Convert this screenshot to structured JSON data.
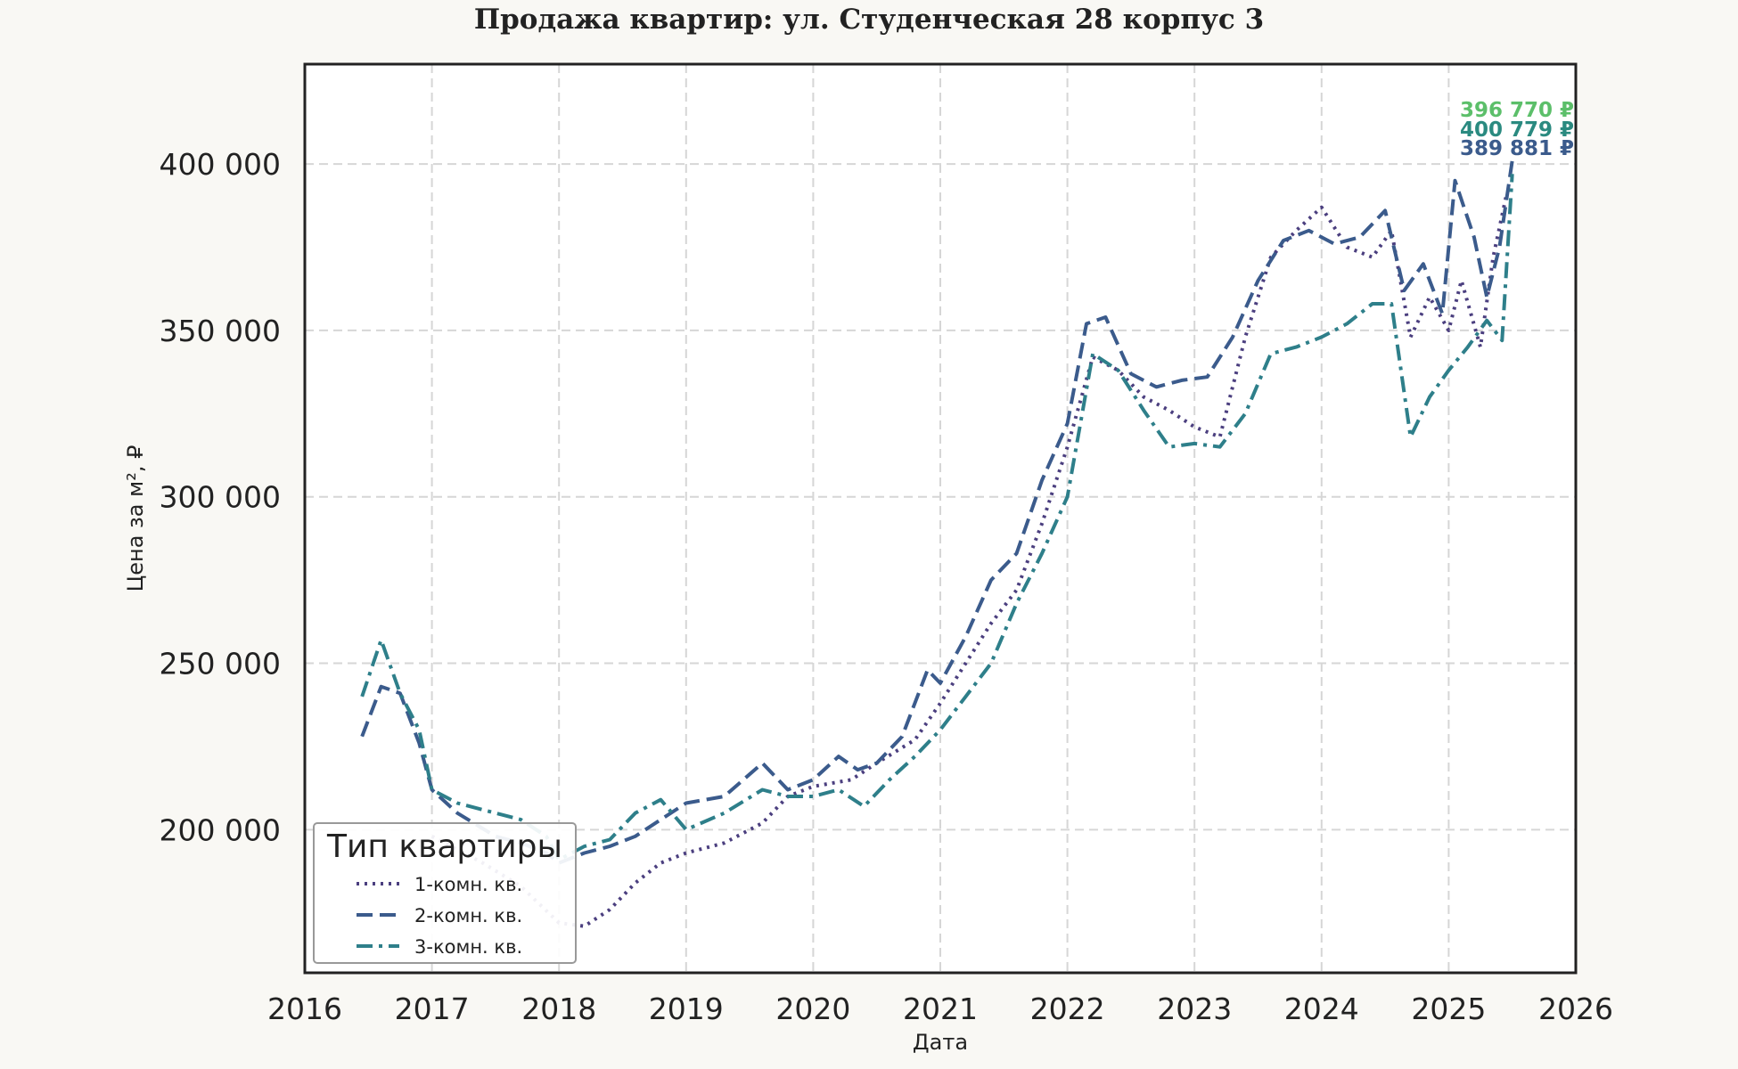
{
  "chart_data": {
    "type": "line",
    "title": "Продажа квартир: ул. Студенческая 28 корпус 3",
    "xlabel": "Дата",
    "ylabel": "Цена за м², ₽",
    "xlim": [
      2016,
      2026
    ],
    "ylim": [
      157000,
      430000
    ],
    "x_ticks": [
      "2016",
      "2017",
      "2018",
      "2019",
      "2020",
      "2021",
      "2022",
      "2023",
      "2024",
      "2025",
      "2026"
    ],
    "y_ticks": [
      {
        "value": 200000,
        "label": "200 000"
      },
      {
        "value": 250000,
        "label": "250 000"
      },
      {
        "value": 300000,
        "label": "300 000"
      },
      {
        "value": 350000,
        "label": "350 000"
      },
      {
        "value": 400000,
        "label": "400 000"
      }
    ],
    "grid": true,
    "legend": {
      "title": "Тип квартиры",
      "position": "bottom-left"
    },
    "series": [
      {
        "name": "1-комн. кв.",
        "color": "#4b3f7f",
        "dash": "dotted",
        "end_label": "389 881 ₽",
        "points": [
          [
            2017.0,
            198000
          ],
          [
            2017.4,
            190000
          ],
          [
            2017.7,
            183000
          ],
          [
            2018.0,
            172000
          ],
          [
            2018.2,
            171000
          ],
          [
            2018.4,
            176000
          ],
          [
            2018.6,
            184000
          ],
          [
            2018.8,
            190000
          ],
          [
            2019.0,
            193000
          ],
          [
            2019.3,
            196000
          ],
          [
            2019.6,
            202000
          ],
          [
            2019.8,
            210000
          ],
          [
            2020.0,
            213000
          ],
          [
            2020.3,
            215000
          ],
          [
            2020.5,
            220000
          ],
          [
            2020.8,
            227000
          ],
          [
            2021.0,
            238000
          ],
          [
            2021.2,
            250000
          ],
          [
            2021.4,
            262000
          ],
          [
            2021.6,
            272000
          ],
          [
            2021.8,
            292000
          ],
          [
            2022.0,
            315000
          ],
          [
            2022.2,
            342000
          ],
          [
            2022.4,
            338000
          ],
          [
            2022.6,
            330000
          ],
          [
            2022.8,
            326000
          ],
          [
            2023.0,
            321000
          ],
          [
            2023.2,
            318000
          ],
          [
            2023.4,
            348000
          ],
          [
            2023.6,
            372000
          ],
          [
            2023.8,
            380000
          ],
          [
            2024.0,
            387000
          ],
          [
            2024.2,
            375000
          ],
          [
            2024.4,
            372000
          ],
          [
            2024.55,
            380000
          ],
          [
            2024.7,
            348000
          ],
          [
            2024.85,
            360000
          ],
          [
            2025.0,
            350000
          ],
          [
            2025.1,
            365000
          ],
          [
            2025.25,
            345000
          ],
          [
            2025.35,
            372000
          ],
          [
            2025.45,
            390000
          ]
        ]
      },
      {
        "name": "2-комн. кв.",
        "color": "#3b5b8c",
        "dash": "dashed",
        "end_label": "400 779 ₽",
        "points": [
          [
            2016.45,
            228000
          ],
          [
            2016.6,
            243000
          ],
          [
            2016.75,
            241000
          ],
          [
            2016.9,
            226000
          ],
          [
            2017.0,
            212000
          ],
          [
            2017.2,
            205000
          ],
          [
            2017.5,
            198000
          ],
          [
            2017.7,
            196000
          ],
          [
            2017.9,
            193000
          ],
          [
            2018.0,
            190000
          ],
          [
            2018.2,
            193000
          ],
          [
            2018.4,
            195000
          ],
          [
            2018.6,
            198000
          ],
          [
            2018.8,
            203000
          ],
          [
            2019.0,
            208000
          ],
          [
            2019.3,
            210000
          ],
          [
            2019.6,
            220000
          ],
          [
            2019.8,
            212000
          ],
          [
            2020.0,
            215000
          ],
          [
            2020.2,
            222000
          ],
          [
            2020.35,
            218000
          ],
          [
            2020.5,
            220000
          ],
          [
            2020.7,
            228000
          ],
          [
            2020.9,
            248000
          ],
          [
            2021.0,
            244000
          ],
          [
            2021.2,
            258000
          ],
          [
            2021.4,
            275000
          ],
          [
            2021.6,
            283000
          ],
          [
            2021.8,
            305000
          ],
          [
            2022.0,
            322000
          ],
          [
            2022.15,
            352000
          ],
          [
            2022.3,
            354000
          ],
          [
            2022.5,
            337000
          ],
          [
            2022.7,
            333000
          ],
          [
            2022.9,
            335000
          ],
          [
            2023.1,
            336000
          ],
          [
            2023.3,
            348000
          ],
          [
            2023.5,
            365000
          ],
          [
            2023.7,
            377000
          ],
          [
            2023.9,
            380000
          ],
          [
            2024.1,
            376000
          ],
          [
            2024.3,
            378000
          ],
          [
            2024.5,
            386000
          ],
          [
            2024.65,
            362000
          ],
          [
            2024.8,
            370000
          ],
          [
            2024.95,
            355000
          ],
          [
            2025.05,
            395000
          ],
          [
            2025.2,
            378000
          ],
          [
            2025.3,
            360000
          ],
          [
            2025.4,
            375000
          ],
          [
            2025.5,
            401000
          ]
        ]
      },
      {
        "name": "3-комн. кв.",
        "color": "#2e7f8a",
        "dash": "dashdot",
        "end_label": "396 770 ₽",
        "points": [
          [
            2016.45,
            240000
          ],
          [
            2016.6,
            257000
          ],
          [
            2016.75,
            241000
          ],
          [
            2016.9,
            230000
          ],
          [
            2017.0,
            212000
          ],
          [
            2017.2,
            208000
          ],
          [
            2017.5,
            205000
          ],
          [
            2017.7,
            203000
          ],
          [
            2017.9,
            198000
          ],
          [
            2018.0,
            191000
          ],
          [
            2018.2,
            195000
          ],
          [
            2018.4,
            197000
          ],
          [
            2018.6,
            205000
          ],
          [
            2018.8,
            209000
          ],
          [
            2019.0,
            200000
          ],
          [
            2019.3,
            205000
          ],
          [
            2019.6,
            212000
          ],
          [
            2019.8,
            210000
          ],
          [
            2020.0,
            210000
          ],
          [
            2020.2,
            212000
          ],
          [
            2020.4,
            207000
          ],
          [
            2020.6,
            215000
          ],
          [
            2020.8,
            222000
          ],
          [
            2021.0,
            230000
          ],
          [
            2021.2,
            240000
          ],
          [
            2021.4,
            250000
          ],
          [
            2021.6,
            268000
          ],
          [
            2021.8,
            283000
          ],
          [
            2022.0,
            300000
          ],
          [
            2022.2,
            343000
          ],
          [
            2022.4,
            338000
          ],
          [
            2022.6,
            326000
          ],
          [
            2022.8,
            315000
          ],
          [
            2023.0,
            316000
          ],
          [
            2023.2,
            315000
          ],
          [
            2023.4,
            325000
          ],
          [
            2023.6,
            343000
          ],
          [
            2023.8,
            345000
          ],
          [
            2024.0,
            348000
          ],
          [
            2024.2,
            352000
          ],
          [
            2024.4,
            358000
          ],
          [
            2024.55,
            358000
          ],
          [
            2024.7,
            318000
          ],
          [
            2024.85,
            330000
          ],
          [
            2025.0,
            338000
          ],
          [
            2025.15,
            345000
          ],
          [
            2025.3,
            353000
          ],
          [
            2025.42,
            347000
          ],
          [
            2025.5,
            397000
          ]
        ]
      }
    ]
  }
}
